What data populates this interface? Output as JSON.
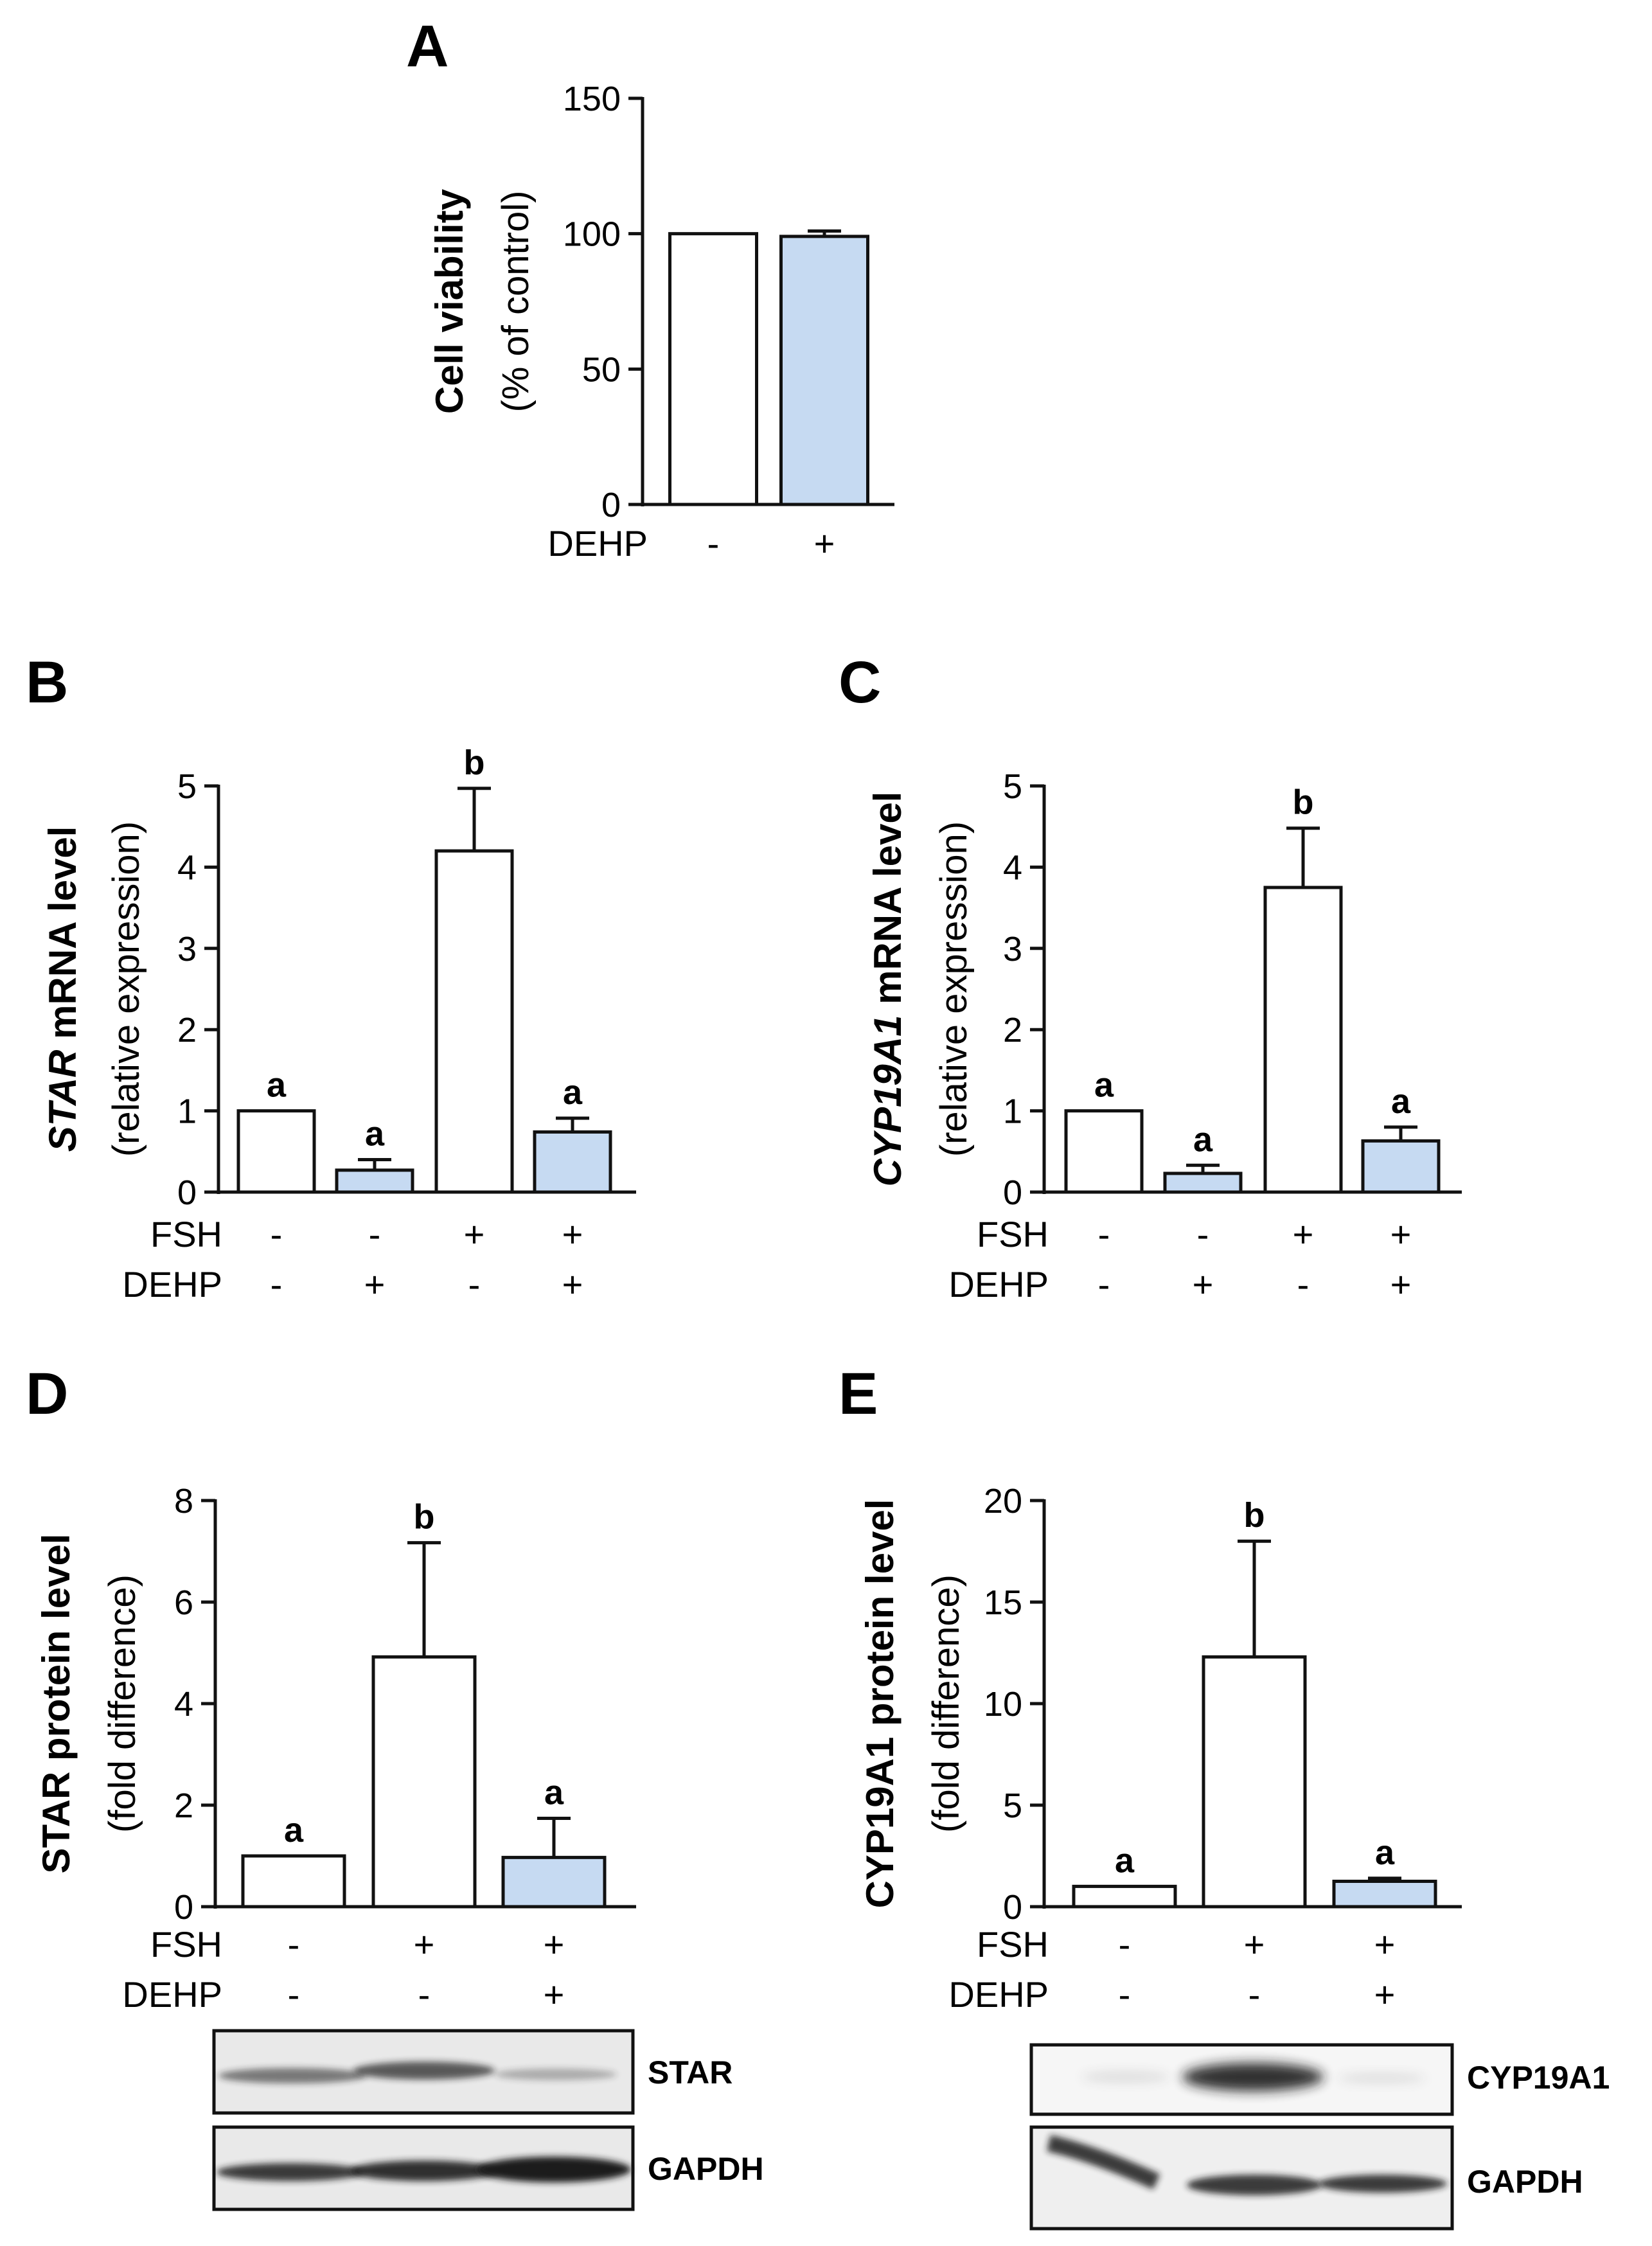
{
  "colors": {
    "control": "#ffffff",
    "dehp": "#c6daf2",
    "axis": "#111111"
  },
  "chart_data": [
    {
      "id": "A",
      "panel_label": "A",
      "type": "bar",
      "ylabel_bold": "Cell viability",
      "ylabel_sub": "(% of control)",
      "ylim": [
        0,
        150
      ],
      "yticks": [
        "0",
        "50",
        "100",
        "150"
      ],
      "values": [
        100,
        99
      ],
      "errors": [
        0,
        2
      ],
      "colors": [
        "control",
        "dehp"
      ],
      "letters": [
        "",
        ""
      ],
      "conditions": [
        {
          "label": "DEHP",
          "marks": [
            "-",
            "+"
          ]
        }
      ]
    },
    {
      "id": "B",
      "panel_label": "B",
      "type": "bar",
      "ylabel_italic": "STAR",
      "ylabel_bold": " mRNA level",
      "ylabel_sub": "(relative expression)",
      "ylim": [
        0,
        5
      ],
      "yticks": [
        "0",
        "1",
        "2",
        "3",
        "4",
        "5"
      ],
      "values": [
        1.0,
        0.27,
        4.2,
        0.74
      ],
      "errors": [
        0,
        0.13,
        0.77,
        0.17
      ],
      "colors": [
        "control",
        "dehp",
        "control",
        "dehp"
      ],
      "letters": [
        "a",
        "a",
        "b",
        "a"
      ],
      "conditions": [
        {
          "label": "FSH",
          "marks": [
            "-",
            "-",
            "+",
            "+"
          ]
        },
        {
          "label": "DEHP",
          "marks": [
            "-",
            "+",
            "-",
            "+"
          ]
        }
      ]
    },
    {
      "id": "C",
      "panel_label": "C",
      "type": "bar",
      "ylabel_italic": "CYP19A1",
      "ylabel_bold": " mRNA level",
      "ylabel_sub": "(relative expression)",
      "ylim": [
        0,
        5
      ],
      "yticks": [
        "0",
        "1",
        "2",
        "3",
        "4",
        "5"
      ],
      "values": [
        1.0,
        0.23,
        3.75,
        0.63
      ],
      "errors": [
        0,
        0.1,
        0.73,
        0.17
      ],
      "colors": [
        "control",
        "dehp",
        "control",
        "dehp"
      ],
      "letters": [
        "a",
        "a",
        "b",
        "a"
      ],
      "conditions": [
        {
          "label": "FSH",
          "marks": [
            "-",
            "-",
            "+",
            "+"
          ]
        },
        {
          "label": "DEHP",
          "marks": [
            "-",
            "+",
            "-",
            "+"
          ]
        }
      ]
    },
    {
      "id": "D",
      "panel_label": "D",
      "type": "bar",
      "ylabel_bold": "STAR protein level",
      "ylabel_sub": "(fold difference)",
      "ylim": [
        0,
        8
      ],
      "yticks": [
        "0",
        "2",
        "4",
        "6",
        "8"
      ],
      "values": [
        1.0,
        4.92,
        0.97
      ],
      "errors": [
        0,
        2.25,
        0.77
      ],
      "colors": [
        "control",
        "control",
        "dehp"
      ],
      "letters": [
        "a",
        "b",
        "a"
      ],
      "conditions": [
        {
          "label": "FSH",
          "marks": [
            "-",
            "+",
            "+"
          ]
        },
        {
          "label": "DEHP",
          "marks": [
            "-",
            "-",
            "+"
          ]
        }
      ],
      "blot": {
        "labels": [
          "STAR",
          "GAPDH"
        ]
      }
    },
    {
      "id": "E",
      "panel_label": "E",
      "type": "bar",
      "ylabel_bold": "CYP19A1 protein level",
      "ylabel_sub": "(fold difference)",
      "ylim": [
        0,
        20
      ],
      "yticks": [
        "0",
        "5",
        "10",
        "15",
        "20"
      ],
      "values": [
        1.0,
        12.3,
        1.25
      ],
      "errors": [
        0,
        5.7,
        0.15
      ],
      "colors": [
        "control",
        "control",
        "dehp"
      ],
      "letters": [
        "a",
        "b",
        "a"
      ],
      "conditions": [
        {
          "label": "FSH",
          "marks": [
            "-",
            "+",
            "+"
          ]
        },
        {
          "label": "DEHP",
          "marks": [
            "-",
            "-",
            "+"
          ]
        }
      ],
      "blot": {
        "labels": [
          "CYP19A1",
          "GAPDH"
        ]
      }
    }
  ]
}
